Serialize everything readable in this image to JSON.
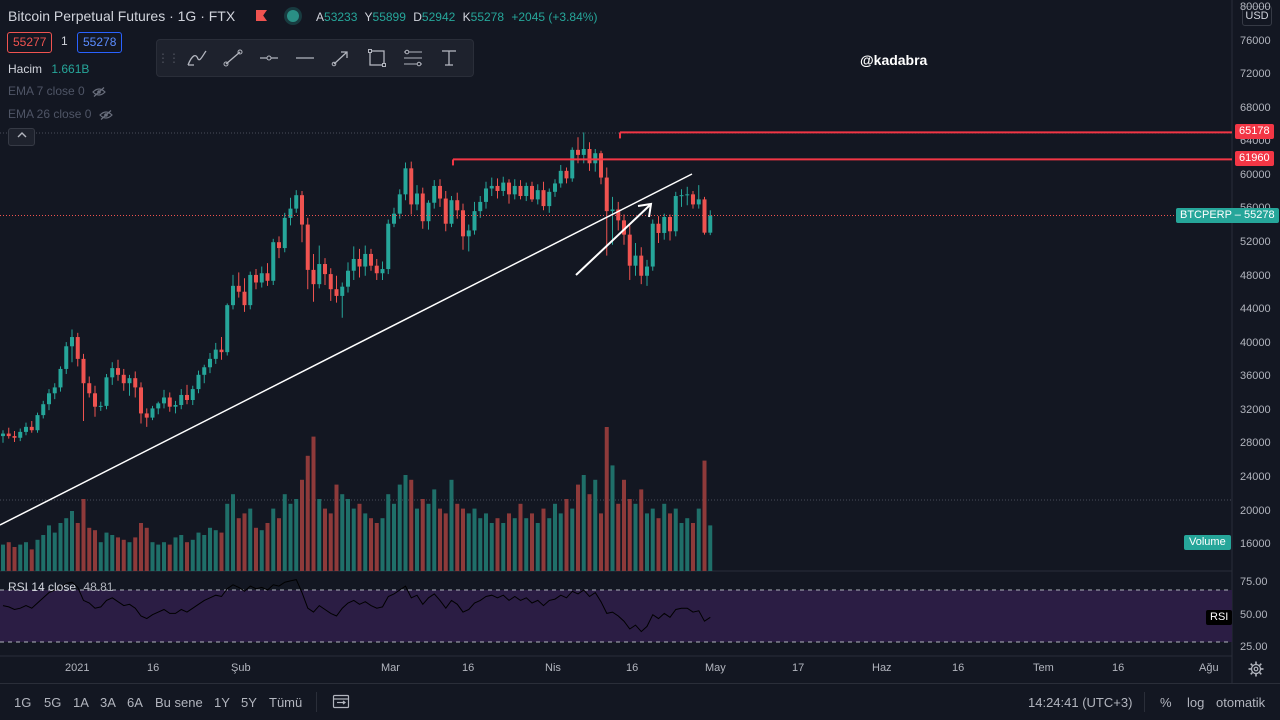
{
  "header": {
    "title": "Bitcoin Perpetual Futures · 1G · FTX",
    "ohlc": [
      {
        "k": "A",
        "v": "53233"
      },
      {
        "k": "Y",
        "v": "55899"
      },
      {
        "k": "D",
        "v": "52942"
      },
      {
        "k": "K",
        "v": "55278"
      }
    ],
    "change": "+2045 (+3.84%)",
    "bid": "55277",
    "spread": "1",
    "ask": "55278"
  },
  "legend": {
    "volume_label": "Hacim",
    "volume_value": "1.661B",
    "ema7": "EMA 7 close 0",
    "ema26": "EMA 26 close 0"
  },
  "watermark": "@kadabra",
  "currency": "USD",
  "price_axis": [
    "80000",
    "76000",
    "72000",
    "68000",
    "64000",
    "60000",
    "56000",
    "52000",
    "48000",
    "44000",
    "40000",
    "36000",
    "32000",
    "28000",
    "24000",
    "20000",
    "16000"
  ],
  "rsi_axis": [
    "75.00",
    "50.00",
    "25.00"
  ],
  "time_axis": [
    "2021",
    "16",
    "Şub",
    "Mar",
    "16",
    "Nis",
    "16",
    "May",
    "17",
    "Haz",
    "16",
    "Tem",
    "16",
    "Ağu"
  ],
  "price_tags": {
    "level_high": "65178",
    "level_mid": "61960",
    "current": "BTCPERP – 55278",
    "volume": "Volume",
    "rsi": "RSI"
  },
  "rsi": {
    "label": "RSI 14 close",
    "value": "48.81"
  },
  "bottom_bar": {
    "ranges": [
      "1G",
      "5G",
      "1A",
      "3A",
      "6A",
      "Bu sene",
      "1Y",
      "5Y",
      "Tümü"
    ],
    "time": "14:24:41 (UTC+3)",
    "percent": "%",
    "log": "log",
    "auto": "otomatik"
  },
  "colors": {
    "background": "#131722",
    "up": "#26a69a",
    "down": "#ef5350",
    "level_line": "#f23645",
    "rsi_band": "#2b1d44"
  },
  "icons": [
    "brush-icon",
    "trend-line-icon",
    "horizontal-ray-icon",
    "horizontal-line-icon",
    "arrow-icon",
    "rectangle-icon",
    "fib-icon",
    "text-icon",
    "calendar-range-icon",
    "settings-icon"
  ],
  "chart_data": {
    "type": "candlestick",
    "ylim": [
      14000,
      80000
    ],
    "levels": [
      65178,
      61960
    ],
    "current_price": 55278,
    "candles": [
      {
        "o": 29000,
        "h": 29700,
        "l": 28200,
        "c": 29300
      },
      {
        "o": 29300,
        "h": 30000,
        "l": 28700,
        "c": 29000
      },
      {
        "o": 29000,
        "h": 29600,
        "l": 28300,
        "c": 28800
      },
      {
        "o": 28800,
        "h": 29900,
        "l": 28400,
        "c": 29500
      },
      {
        "o": 29500,
        "h": 30600,
        "l": 29100,
        "c": 30100
      },
      {
        "o": 30100,
        "h": 30800,
        "l": 29400,
        "c": 29700
      },
      {
        "o": 29700,
        "h": 31800,
        "l": 29400,
        "c": 31500
      },
      {
        "o": 31500,
        "h": 33200,
        "l": 31100,
        "c": 32800
      },
      {
        "o": 32800,
        "h": 34600,
        "l": 32100,
        "c": 34100
      },
      {
        "o": 34100,
        "h": 35300,
        "l": 33400,
        "c": 34800
      },
      {
        "o": 34800,
        "h": 37300,
        "l": 34300,
        "c": 37000
      },
      {
        "o": 37000,
        "h": 40200,
        "l": 36400,
        "c": 39700
      },
      {
        "o": 39700,
        "h": 41700,
        "l": 37800,
        "c": 40800
      },
      {
        "o": 40800,
        "h": 41300,
        "l": 37300,
        "c": 38200
      },
      {
        "o": 38200,
        "h": 38800,
        "l": 30800,
        "c": 35300
      },
      {
        "o": 35300,
        "h": 36100,
        "l": 33600,
        "c": 34100
      },
      {
        "o": 34100,
        "h": 35000,
        "l": 31300,
        "c": 32500
      },
      {
        "o": 32500,
        "h": 33100,
        "l": 32000,
        "c": 32600
      },
      {
        "o": 32600,
        "h": 36400,
        "l": 32200,
        "c": 36000
      },
      {
        "o": 36000,
        "h": 37800,
        "l": 35100,
        "c": 37100
      },
      {
        "o": 37100,
        "h": 38100,
        "l": 35600,
        "c": 36300
      },
      {
        "o": 36300,
        "h": 37000,
        "l": 34400,
        "c": 35300
      },
      {
        "o": 35300,
        "h": 36300,
        "l": 33800,
        "c": 35900
      },
      {
        "o": 35900,
        "h": 36700,
        "l": 33600,
        "c": 34800
      },
      {
        "o": 34800,
        "h": 35400,
        "l": 30500,
        "c": 31700
      },
      {
        "o": 31700,
        "h": 32300,
        "l": 30100,
        "c": 31200
      },
      {
        "o": 31200,
        "h": 32600,
        "l": 30900,
        "c": 32300
      },
      {
        "o": 32300,
        "h": 33100,
        "l": 31600,
        "c": 32900
      },
      {
        "o": 32900,
        "h": 34500,
        "l": 32300,
        "c": 33600
      },
      {
        "o": 33600,
        "h": 34200,
        "l": 31900,
        "c": 32500
      },
      {
        "o": 32500,
        "h": 33200,
        "l": 31700,
        "c": 32700
      },
      {
        "o": 32700,
        "h": 34600,
        "l": 32200,
        "c": 33900
      },
      {
        "o": 33900,
        "h": 35100,
        "l": 32800,
        "c": 33300
      },
      {
        "o": 33300,
        "h": 35000,
        "l": 32700,
        "c": 34600
      },
      {
        "o": 34600,
        "h": 36800,
        "l": 34100,
        "c": 36300
      },
      {
        "o": 36300,
        "h": 37500,
        "l": 35300,
        "c": 37200
      },
      {
        "o": 37200,
        "h": 38900,
        "l": 36500,
        "c": 38200
      },
      {
        "o": 38200,
        "h": 40100,
        "l": 37600,
        "c": 39300
      },
      {
        "o": 39300,
        "h": 40800,
        "l": 38100,
        "c": 39000
      },
      {
        "o": 39000,
        "h": 44800,
        "l": 38600,
        "c": 44600
      },
      {
        "o": 44600,
        "h": 48200,
        "l": 44100,
        "c": 46900
      },
      {
        "o": 46900,
        "h": 48500,
        "l": 45500,
        "c": 46200
      },
      {
        "o": 46200,
        "h": 47800,
        "l": 43800,
        "c": 44600
      },
      {
        "o": 44600,
        "h": 48600,
        "l": 44100,
        "c": 48200
      },
      {
        "o": 48200,
        "h": 48900,
        "l": 46500,
        "c": 47300
      },
      {
        "o": 47300,
        "h": 49200,
        "l": 46700,
        "c": 48400
      },
      {
        "o": 48400,
        "h": 49600,
        "l": 46900,
        "c": 47500
      },
      {
        "o": 47500,
        "h": 52500,
        "l": 47000,
        "c": 52100
      },
      {
        "o": 52100,
        "h": 52800,
        "l": 50200,
        "c": 51400
      },
      {
        "o": 51400,
        "h": 55600,
        "l": 50900,
        "c": 55000
      },
      {
        "o": 55000,
        "h": 57400,
        "l": 54100,
        "c": 56100
      },
      {
        "o": 56100,
        "h": 58300,
        "l": 55600,
        "c": 57700
      },
      {
        "o": 57700,
        "h": 58200,
        "l": 52100,
        "c": 54200
      },
      {
        "o": 54200,
        "h": 55000,
        "l": 46500,
        "c": 48800
      },
      {
        "o": 48800,
        "h": 50700,
        "l": 45000,
        "c": 47100
      },
      {
        "o": 47100,
        "h": 51700,
        "l": 46600,
        "c": 49500
      },
      {
        "o": 49500,
        "h": 50200,
        "l": 47000,
        "c": 48300
      },
      {
        "o": 48300,
        "h": 49000,
        "l": 45100,
        "c": 46500
      },
      {
        "o": 46500,
        "h": 48100,
        "l": 44900,
        "c": 45700
      },
      {
        "o": 45700,
        "h": 47300,
        "l": 43100,
        "c": 46800
      },
      {
        "o": 46800,
        "h": 49700,
        "l": 46100,
        "c": 48700
      },
      {
        "o": 48700,
        "h": 51600,
        "l": 47600,
        "c": 50100
      },
      {
        "o": 50100,
        "h": 51300,
        "l": 47900,
        "c": 49200
      },
      {
        "o": 49200,
        "h": 51700,
        "l": 48100,
        "c": 50700
      },
      {
        "o": 50700,
        "h": 51300,
        "l": 48700,
        "c": 49300
      },
      {
        "o": 49300,
        "h": 50100,
        "l": 47600,
        "c": 48400
      },
      {
        "o": 48400,
        "h": 49800,
        "l": 47600,
        "c": 48900
      },
      {
        "o": 48900,
        "h": 54800,
        "l": 48300,
        "c": 54300
      },
      {
        "o": 54300,
        "h": 56200,
        "l": 53900,
        "c": 55500
      },
      {
        "o": 55500,
        "h": 58400,
        "l": 54900,
        "c": 57800
      },
      {
        "o": 57800,
        "h": 61600,
        "l": 57100,
        "c": 60900
      },
      {
        "o": 60900,
        "h": 61700,
        "l": 55400,
        "c": 56600
      },
      {
        "o": 56600,
        "h": 58900,
        "l": 55900,
        "c": 57900
      },
      {
        "o": 57900,
        "h": 58600,
        "l": 53700,
        "c": 54600
      },
      {
        "o": 54600,
        "h": 57100,
        "l": 53600,
        "c": 56800
      },
      {
        "o": 56800,
        "h": 59500,
        "l": 56100,
        "c": 58800
      },
      {
        "o": 58800,
        "h": 59600,
        "l": 56300,
        "c": 57300
      },
      {
        "o": 57300,
        "h": 58200,
        "l": 53400,
        "c": 54300
      },
      {
        "o": 54300,
        "h": 57600,
        "l": 53900,
        "c": 57100
      },
      {
        "o": 57100,
        "h": 58000,
        "l": 54900,
        "c": 55900
      },
      {
        "o": 55900,
        "h": 56700,
        "l": 51200,
        "c": 52800
      },
      {
        "o": 52800,
        "h": 54200,
        "l": 51000,
        "c": 53500
      },
      {
        "o": 53500,
        "h": 56900,
        "l": 53000,
        "c": 55800
      },
      {
        "o": 55800,
        "h": 57600,
        "l": 55000,
        "c": 56900
      },
      {
        "o": 56900,
        "h": 59300,
        "l": 56100,
        "c": 58500
      },
      {
        "o": 58500,
        "h": 59800,
        "l": 57600,
        "c": 58800
      },
      {
        "o": 58800,
        "h": 59700,
        "l": 57300,
        "c": 58200
      },
      {
        "o": 58200,
        "h": 59900,
        "l": 57600,
        "c": 59200
      },
      {
        "o": 59200,
        "h": 59600,
        "l": 56700,
        "c": 57800
      },
      {
        "o": 57800,
        "h": 59600,
        "l": 57200,
        "c": 58800
      },
      {
        "o": 58800,
        "h": 59500,
        "l": 57200,
        "c": 57600
      },
      {
        "o": 57600,
        "h": 59200,
        "l": 57000,
        "c": 58800
      },
      {
        "o": 58800,
        "h": 59300,
        "l": 56900,
        "c": 57200
      },
      {
        "o": 57200,
        "h": 59000,
        "l": 56600,
        "c": 58300
      },
      {
        "o": 58300,
        "h": 59300,
        "l": 55900,
        "c": 56400
      },
      {
        "o": 56400,
        "h": 58500,
        "l": 55600,
        "c": 58100
      },
      {
        "o": 58100,
        "h": 59600,
        "l": 57500,
        "c": 59100
      },
      {
        "o": 59100,
        "h": 61300,
        "l": 58600,
        "c": 60600
      },
      {
        "o": 60600,
        "h": 61000,
        "l": 59100,
        "c": 59700
      },
      {
        "o": 59700,
        "h": 63400,
        "l": 59300,
        "c": 63100
      },
      {
        "o": 63100,
        "h": 64600,
        "l": 61500,
        "c": 62500
      },
      {
        "o": 62500,
        "h": 65178,
        "l": 61500,
        "c": 63200
      },
      {
        "o": 63200,
        "h": 64000,
        "l": 60600,
        "c": 61500
      },
      {
        "o": 61500,
        "h": 63200,
        "l": 60500,
        "c": 62700
      },
      {
        "o": 62700,
        "h": 63000,
        "l": 59000,
        "c": 59800
      },
      {
        "o": 59800,
        "h": 61000,
        "l": 50500,
        "c": 55800
      },
      {
        "o": 55800,
        "h": 57500,
        "l": 51800,
        "c": 56000
      },
      {
        "o": 56000,
        "h": 56900,
        "l": 53500,
        "c": 54700
      },
      {
        "o": 54700,
        "h": 55400,
        "l": 51800,
        "c": 53000
      },
      {
        "o": 53000,
        "h": 54100,
        "l": 47600,
        "c": 49300
      },
      {
        "o": 49300,
        "h": 52000,
        "l": 48100,
        "c": 50500
      },
      {
        "o": 50500,
        "h": 51500,
        "l": 47100,
        "c": 48100
      },
      {
        "o": 48100,
        "h": 50000,
        "l": 46900,
        "c": 49200
      },
      {
        "o": 49200,
        "h": 54800,
        "l": 48700,
        "c": 54300
      },
      {
        "o": 54300,
        "h": 55200,
        "l": 52000,
        "c": 53200
      },
      {
        "o": 53200,
        "h": 55500,
        "l": 52400,
        "c": 55100
      },
      {
        "o": 55100,
        "h": 55400,
        "l": 52300,
        "c": 53400
      },
      {
        "o": 53400,
        "h": 58100,
        "l": 52800,
        "c": 57600
      },
      {
        "o": 57600,
        "h": 58400,
        "l": 56300,
        "c": 57700
      },
      {
        "o": 57700,
        "h": 58700,
        "l": 56500,
        "c": 57800
      },
      {
        "o": 57800,
        "h": 58200,
        "l": 56100,
        "c": 56600
      },
      {
        "o": 56600,
        "h": 58900,
        "l": 56100,
        "c": 57200
      },
      {
        "o": 57200,
        "h": 57500,
        "l": 53000,
        "c": 53233
      },
      {
        "o": 53233,
        "h": 55899,
        "l": 52942,
        "c": 55278
      }
    ],
    "rsi": [
      58,
      57,
      55,
      56,
      58,
      56,
      60,
      64,
      68,
      70,
      72,
      75,
      76,
      72,
      62,
      60,
      56,
      57,
      62,
      64,
      61,
      58,
      59,
      56,
      50,
      48,
      51,
      53,
      55,
      52,
      52,
      55,
      53,
      56,
      59,
      62,
      64,
      66,
      65,
      71,
      74,
      72,
      69,
      73,
      71,
      72,
      70,
      74,
      73,
      76,
      77,
      78,
      68,
      56,
      53,
      58,
      55,
      52,
      50,
      56,
      60,
      62,
      59,
      61,
      58,
      56,
      57,
      65,
      67,
      70,
      73,
      64,
      66,
      59,
      64,
      67,
      62,
      56,
      62,
      59,
      53,
      55,
      60,
      62,
      65,
      66,
      64,
      66,
      62,
      65,
      62,
      64,
      60,
      62,
      58,
      62,
      63,
      66,
      64,
      69,
      67,
      70,
      65,
      68,
      61,
      52,
      53,
      50,
      46,
      40,
      43,
      38,
      42,
      51,
      48,
      52,
      49,
      55,
      56,
      56,
      53,
      54,
      46,
      49
    ],
    "volume": [
      0.55,
      0.6,
      0.5,
      0.55,
      0.6,
      0.45,
      0.65,
      0.75,
      0.95,
      0.8,
      1.0,
      1.1,
      1.25,
      1.0,
      1.5,
      0.9,
      0.85,
      0.6,
      0.8,
      0.75,
      0.7,
      0.65,
      0.6,
      0.7,
      1.0,
      0.9,
      0.6,
      0.55,
      0.6,
      0.55,
      0.7,
      0.75,
      0.6,
      0.65,
      0.8,
      0.75,
      0.9,
      0.85,
      0.8,
      1.4,
      1.6,
      1.1,
      1.2,
      1.3,
      0.9,
      0.85,
      1.0,
      1.3,
      1.1,
      1.6,
      1.4,
      1.5,
      1.9,
      2.4,
      2.8,
      1.5,
      1.3,
      1.2,
      1.8,
      1.6,
      1.5,
      1.3,
      1.4,
      1.2,
      1.1,
      1.0,
      1.1,
      1.6,
      1.4,
      1.8,
      2.0,
      1.9,
      1.3,
      1.5,
      1.4,
      1.7,
      1.3,
      1.2,
      1.9,
      1.4,
      1.3,
      1.2,
      1.3,
      1.1,
      1.2,
      1.0,
      1.1,
      1.0,
      1.2,
      1.1,
      1.4,
      1.1,
      1.2,
      1.0,
      1.3,
      1.1,
      1.4,
      1.2,
      1.5,
      1.3,
      1.8,
      2.0,
      1.6,
      1.9,
      1.2,
      3.0,
      2.2,
      1.4,
      1.9,
      1.5,
      1.4,
      1.7,
      1.2,
      1.3,
      1.1,
      1.4,
      1.2,
      1.3,
      1.0,
      1.1,
      1.0,
      1.3,
      2.3,
      0.95
    ]
  }
}
